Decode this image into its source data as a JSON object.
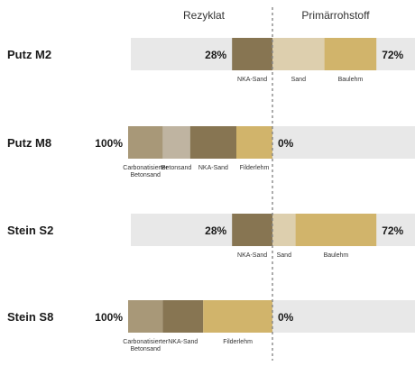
{
  "chart_data": {
    "type": "bar",
    "orientation": "horizontal",
    "layout": "diverging-stacked",
    "headers": {
      "left": "Rezyklat",
      "right": "Primärrohstoff"
    },
    "categories": [
      "Putz M2",
      "Putz M8",
      "Stein S2",
      "Stein S8"
    ],
    "rows": [
      {
        "label": "Putz M2",
        "recycled_total_label": "28%",
        "primary_total_label": "72%",
        "recycled": [
          {
            "name": "NKA-Sand",
            "label": [
              "NKA-Sand"
            ],
            "value": 28,
            "color": "#877552"
          }
        ],
        "primary": [
          {
            "name": "Sand",
            "label": [
              "Sand"
            ],
            "value": 36,
            "color": "#ddcfae"
          },
          {
            "name": "Baulehm",
            "label": [
              "Baulehm"
            ],
            "value": 36,
            "color": "#d1b46b"
          }
        ]
      },
      {
        "label": "Putz M8",
        "recycled_total_label": "100%",
        "primary_total_label": "0%",
        "recycled": [
          {
            "name": "Carbonatisierter Betonsand",
            "label": [
              "Carbonatisierter",
              "Betonsand"
            ],
            "value": 24,
            "color": "#a89878"
          },
          {
            "name": "Betonsand",
            "label": [
              "Betonsand"
            ],
            "value": 19,
            "color": "#bfb4a1"
          },
          {
            "name": "NKA-Sand",
            "label": [
              "NKA-Sand"
            ],
            "value": 32,
            "color": "#877552"
          },
          {
            "name": "Filderlehm",
            "label": [
              "Filderlehm"
            ],
            "value": 25,
            "color": "#d1b46b"
          }
        ],
        "primary": []
      },
      {
        "label": "Stein S2",
        "recycled_total_label": "28%",
        "primary_total_label": "72%",
        "recycled": [
          {
            "name": "NKA-Sand",
            "label": [
              "NKA-Sand"
            ],
            "value": 28,
            "color": "#877552"
          }
        ],
        "primary": [
          {
            "name": "Sand",
            "label": [
              "Sand"
            ],
            "value": 16,
            "color": "#ddcfae"
          },
          {
            "name": "Baulehm",
            "label": [
              "Baulehm"
            ],
            "value": 56,
            "color": "#d1b46b"
          }
        ]
      },
      {
        "label": "Stein S8",
        "recycled_total_label": "100%",
        "primary_total_label": "0%",
        "recycled": [
          {
            "name": "Carbonatisierter Betonsand",
            "label": [
              "Carbonatisierter",
              "Betonsand"
            ],
            "value": 24,
            "color": "#a89878"
          },
          {
            "name": "NKA-Sand",
            "label": [
              "NKA-Sand"
            ],
            "value": 28,
            "color": "#877552"
          },
          {
            "name": "Filderlehm",
            "label": [
              "Filderlehm"
            ],
            "value": 48,
            "color": "#d1b46b"
          }
        ],
        "primary": []
      }
    ],
    "xlim": [
      -100,
      100
    ],
    "colors": {
      "background_bar": "#e8e8e8",
      "divider": "#888888"
    },
    "grid": false,
    "legend": "none"
  }
}
